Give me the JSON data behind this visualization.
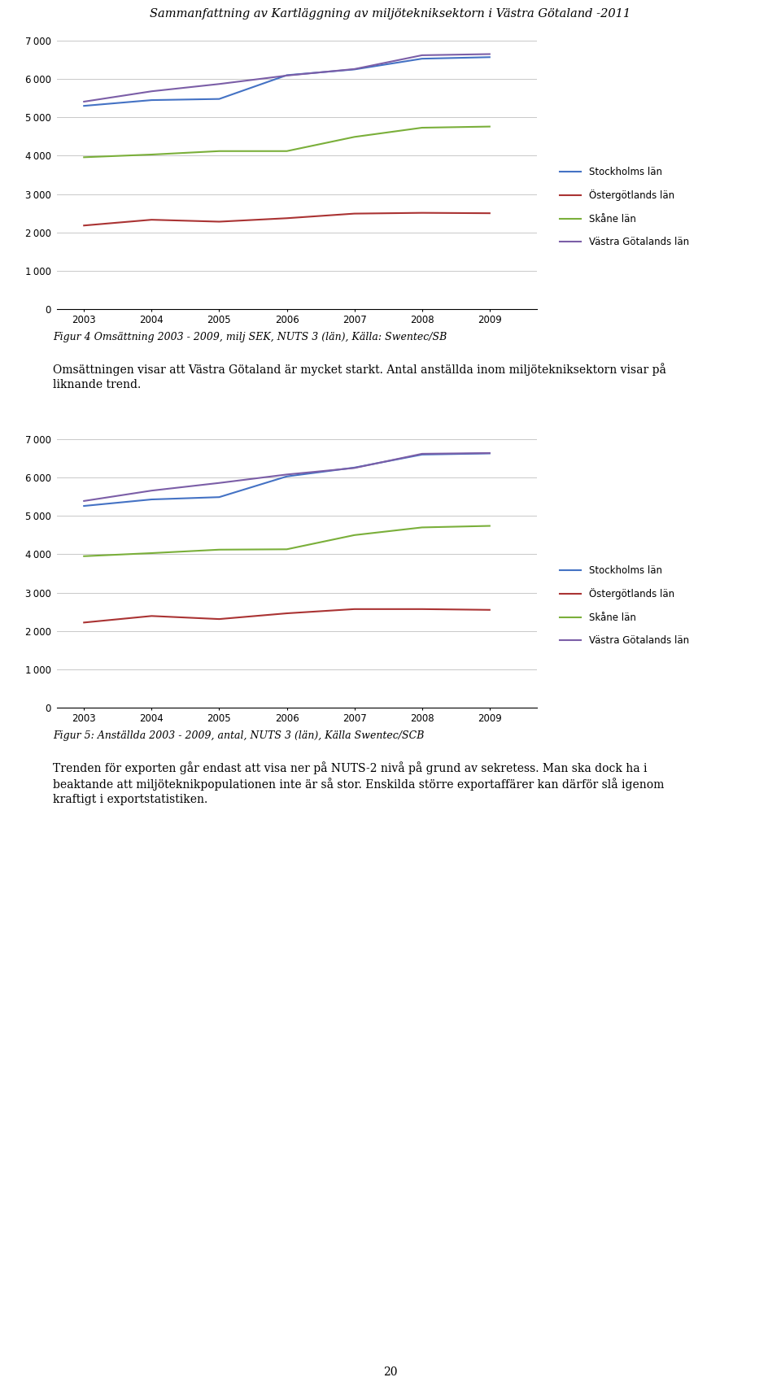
{
  "page_title": "Sammanfattning av Kartläggning av miljötekniksektorn i Västra Götaland -2011",
  "years": [
    2003,
    2004,
    2005,
    2006,
    2007,
    2008,
    2009
  ],
  "chart1": {
    "stockholms_lan": [
      5300,
      5450,
      5480,
      6100,
      6250,
      6530,
      6570
    ],
    "ostergotlands_lan": [
      2180,
      2330,
      2280,
      2370,
      2490,
      2510,
      2500
    ],
    "skane_lan": [
      3960,
      4030,
      4120,
      4120,
      4490,
      4730,
      4760
    ],
    "vastra_gotalands_lan": [
      5410,
      5680,
      5870,
      6090,
      6260,
      6620,
      6650
    ],
    "ylim": [
      0,
      7000
    ],
    "yticks": [
      0,
      1000,
      2000,
      3000,
      4000,
      5000,
      6000,
      7000
    ]
  },
  "chart2": {
    "stockholms_lan": [
      5260,
      5430,
      5490,
      6030,
      6260,
      6600,
      6630
    ],
    "ostergotlands_lan": [
      2220,
      2390,
      2310,
      2460,
      2570,
      2570,
      2550
    ],
    "skane_lan": [
      3950,
      4030,
      4120,
      4130,
      4500,
      4700,
      4740
    ],
    "vastra_gotalands_lan": [
      5390,
      5660,
      5860,
      6080,
      6250,
      6620,
      6640
    ],
    "ylim": [
      0,
      7000
    ],
    "yticks": [
      0,
      1000,
      2000,
      3000,
      4000,
      5000,
      6000,
      7000
    ]
  },
  "colors": {
    "stockholms_lan": "#4472C4",
    "ostergotlands_lan": "#AA3333",
    "skane_lan": "#7AAF3A",
    "vastra_gotalands_lan": "#7B5EA7"
  },
  "legend_labels": [
    "Stockholms län",
    "Östergötlands län",
    "Skåne län",
    "Västra Götalands län"
  ],
  "caption1": "Figur 4 Omsättning 2003 - 2009, milj SEK, NUTS 3 (län), Källa: Swentec/SB",
  "text1_line1": "Omsättningen visar att Västra Götaland är mycket starkt. Antal anställda inom miljötekniksektorn visar på",
  "text1_line2": "liknande trend.",
  "caption2": "Figur 5: Anställda 2003 - 2009, antal, NUTS 3 (län), Källa Swentec/SCB",
  "text2_line1": "Trenden för exporten går endast att visa ner på NUTS-2 nivå på grund av sekretess. Man ska dock ha i",
  "text2_line2": "beaktande att miljöteknikpopulationen inte är så stor. Enskilda större exportaffärer kan därför slå igenom",
  "text2_line3": "kraftigt i exportstatistiken.",
  "page_number": "20"
}
